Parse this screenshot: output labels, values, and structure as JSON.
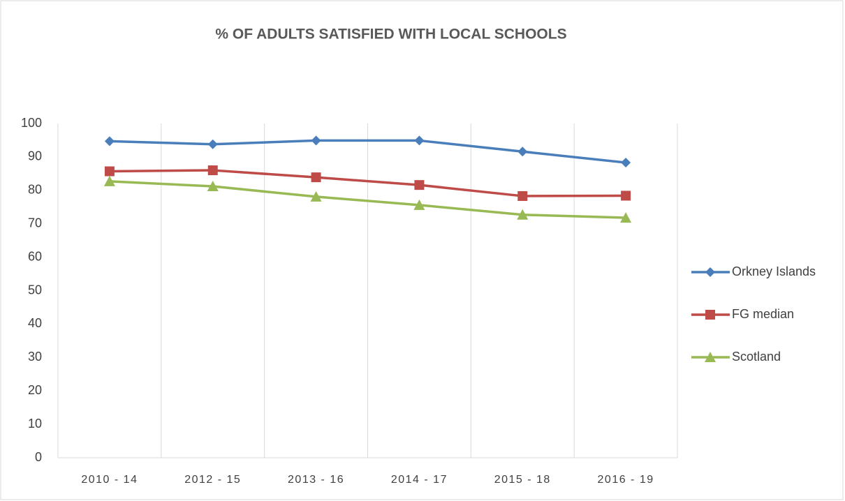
{
  "chart_data": {
    "type": "line",
    "title": "%  OF  ADULTS SATISFIED WITH LOCAL  SCHOOLS",
    "categories": [
      "2010 - 14",
      "2012 - 15",
      "2013 - 16",
      "2014 - 17",
      "2015 - 18",
      "2016 - 19"
    ],
    "series": [
      {
        "name": "Orkney Islands",
        "color": "#4a7ebb",
        "marker": "diamond",
        "values": [
          94.7,
          93.8,
          94.9,
          94.9,
          91.6,
          88.3
        ]
      },
      {
        "name": "FG median",
        "color": "#be4b48",
        "marker": "square",
        "values": [
          85.7,
          86,
          83.9,
          81.6,
          78.3,
          78.4
        ]
      },
      {
        "name": "Scotland",
        "color": "#98b954",
        "marker": "triangle",
        "values": [
          82.7,
          81.2,
          78.1,
          75.6,
          72.7,
          71.8
        ]
      }
    ],
    "ylim": [
      0,
      100
    ],
    "yticks": [
      0,
      10,
      20,
      30,
      40,
      50,
      60,
      70,
      80,
      90,
      100
    ],
    "grid": true,
    "legend": "right"
  }
}
